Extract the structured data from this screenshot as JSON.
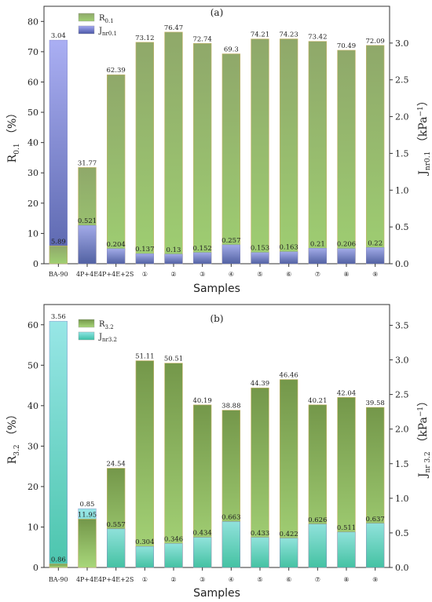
{
  "chart_data": [
    {
      "type": "bar",
      "panel_label": "(a)",
      "categories": [
        "BA-90",
        "4P+4E",
        "4P+4E+2S",
        "①",
        "②",
        "③",
        "④",
        "⑤",
        "⑥",
        "⑦",
        "⑧",
        "⑨"
      ],
      "xlabel": "Samples",
      "ylabel_left": {
        "main": "R",
        "sub": "0.1",
        "unit": "（%）"
      },
      "ylabel_right": {
        "main": "J",
        "sub": "nr0.1",
        "unit": "（kPa",
        "exp": "−1",
        "close": "）"
      },
      "y_left_lim": [
        0,
        85
      ],
      "y_right_lim": [
        0,
        3.5
      ],
      "y_left_ticks": [
        "0",
        "10",
        "20",
        "30",
        "40",
        "50",
        "60",
        "70",
        "80"
      ],
      "y_right_ticks": [
        "0.0",
        "0.5",
        "1.0",
        "1.5",
        "2.0",
        "2.5",
        "3.0"
      ],
      "legend_position": "top-left",
      "series": [
        {
          "name": "R0.1",
          "legend": {
            "main": "R",
            "sub": "0.1"
          },
          "axis": "left",
          "color_top": "#8fa86a",
          "color_bottom": "#9fcf72",
          "values": [
            5.89,
            31.77,
            62.39,
            73.12,
            76.47,
            72.74,
            69.3,
            74.21,
            74.23,
            73.42,
            70.49,
            72.09
          ],
          "labels": [
            "5.89",
            "31.77",
            "62.39",
            "73.12",
            "76.47",
            "72.74",
            "69.3",
            "74.21",
            "74.23",
            "73.42",
            "70.49",
            "72.09"
          ]
        },
        {
          "name": "Jnr0.1",
          "legend": {
            "main": "J",
            "sub": "nr0.1"
          },
          "axis": "right",
          "color_top": "#a3a8f2",
          "color_bottom": "#4b58a6",
          "values": [
            3.04,
            0.521,
            0.204,
            0.137,
            0.13,
            0.152,
            0.257,
            0.153,
            0.163,
            0.21,
            0.206,
            0.22
          ],
          "labels": [
            "3.04",
            "0.521",
            "0.204",
            "0.137",
            "0.13",
            "0.152",
            "0.257",
            "0.153",
            "0.163",
            "0.21",
            "0.206",
            "0.22"
          ]
        }
      ]
    },
    {
      "type": "bar",
      "panel_label": "(b)",
      "categories": [
        "BA-90",
        "4P+4E",
        "4P+4E+2S",
        "①",
        "②",
        "③",
        "④",
        "⑤",
        "⑥",
        "⑦",
        "⑧",
        "⑨"
      ],
      "xlabel": "Samples",
      "ylabel_left": {
        "main": "R",
        "sub": "3.2",
        "unit": "（%）"
      },
      "ylabel_right": {
        "main": "J",
        "sub": "nr 3.2",
        "unit": "（kPa",
        "exp": "−1",
        "close": "）"
      },
      "y_left_lim": [
        0,
        65
      ],
      "y_right_lim": [
        0,
        3.8
      ],
      "y_left_ticks": [
        "0",
        "10",
        "20",
        "30",
        "40",
        "50",
        "60"
      ],
      "y_right_ticks": [
        "0.0",
        "0.5",
        "1.0",
        "1.5",
        "2.0",
        "2.5",
        "3.0",
        "3.5"
      ],
      "legend_position": "top-left",
      "series": [
        {
          "name": "R3.2",
          "legend": {
            "main": "R",
            "sub": "3.2"
          },
          "axis": "left",
          "color_top": "#74974a",
          "color_bottom": "#a8d77a",
          "values": [
            0.86,
            11.95,
            24.54,
            51.11,
            50.51,
            40.19,
            38.88,
            44.39,
            46.46,
            40.21,
            42.04,
            39.58
          ],
          "labels": [
            "0.86",
            "11.95",
            "24.54",
            "51.11",
            "50.51",
            "40.19",
            "38.88",
            "44.39",
            "46.46",
            "40.21",
            "42.04",
            "39.58"
          ]
        },
        {
          "name": "Jnr3.2",
          "legend": {
            "main": "J",
            "sub": "nr3.2"
          },
          "axis": "right",
          "color_top": "#8fe4e4",
          "color_bottom": "#3cc0a6",
          "values": [
            3.56,
            0.85,
            0.557,
            0.304,
            0.346,
            0.434,
            0.663,
            0.433,
            0.422,
            0.626,
            0.511,
            0.637
          ],
          "labels": [
            "3.56",
            "0.85",
            "0.557",
            "0.304",
            "0.346",
            "0.434",
            "0.663",
            "0.433",
            "0.422",
            "0.626",
            "0.511",
            "0.637"
          ]
        }
      ]
    }
  ]
}
